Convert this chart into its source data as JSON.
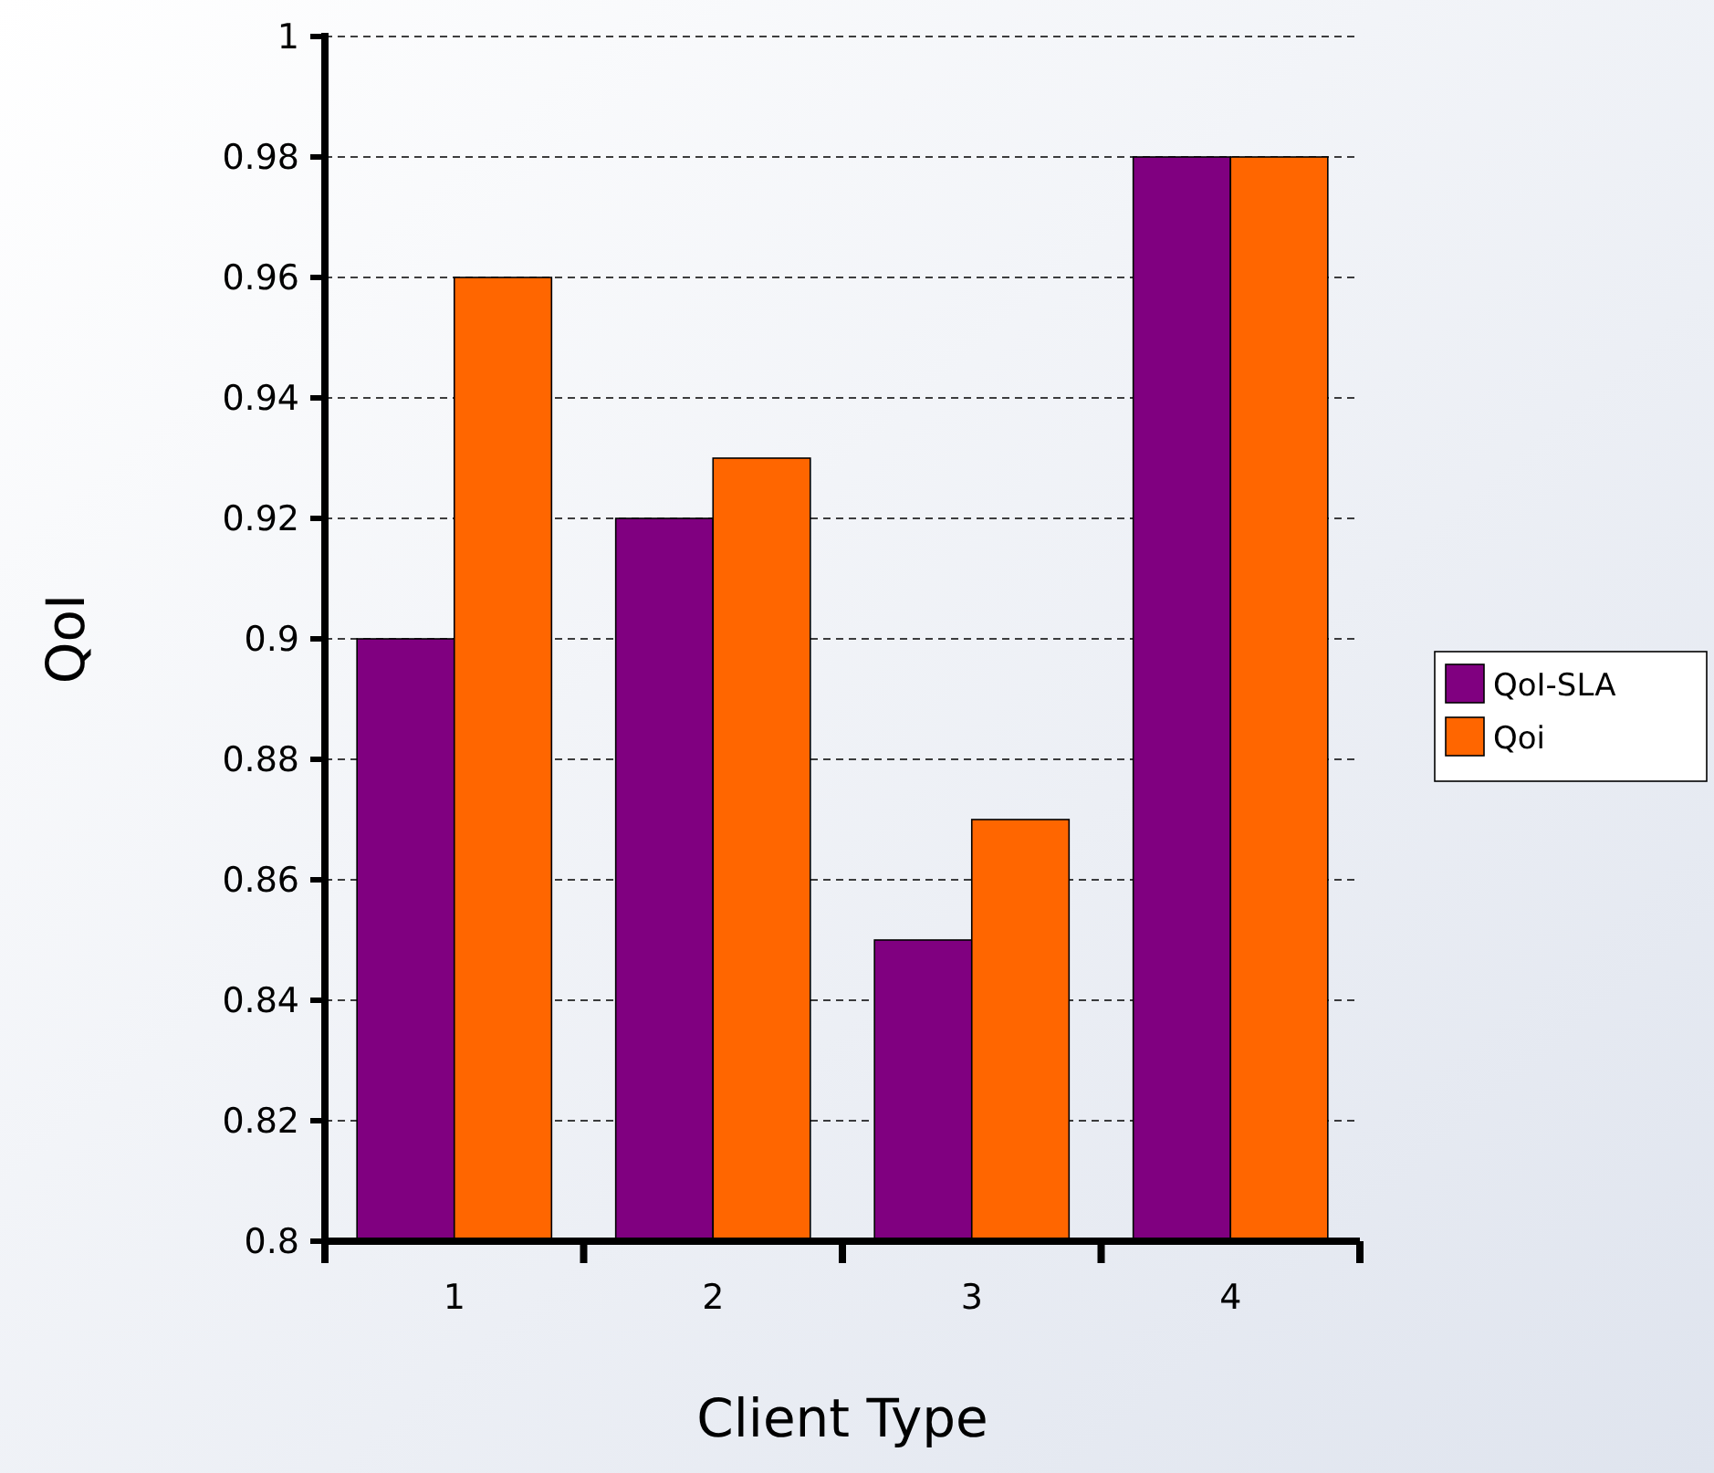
{
  "chart_data": {
    "type": "bar",
    "xlabel": "Client Type",
    "ylabel": "QoI",
    "categories": [
      "1",
      "2",
      "3",
      "4"
    ],
    "series": [
      {
        "name": "QoI-SLA",
        "color": "#800080",
        "values": [
          0.9,
          0.92,
          0.85,
          0.98
        ]
      },
      {
        "name": "Qoi",
        "color": "#ff6600",
        "values": [
          0.96,
          0.93,
          0.87,
          0.98
        ]
      }
    ],
    "ylim": [
      0.8,
      1
    ],
    "yticks": [
      0.8,
      0.82,
      0.84,
      0.86,
      0.88,
      0.9,
      0.92,
      0.94,
      0.96,
      0.98,
      1
    ],
    "grid": "y",
    "legend": "right"
  }
}
